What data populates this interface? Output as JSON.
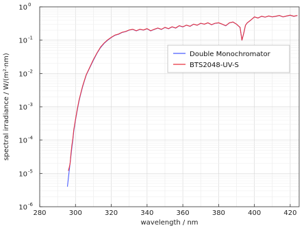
{
  "chart_data": {
    "type": "line",
    "title": "",
    "xlabel": "wavelength / nm",
    "ylabel": "spectral irradiance / W/(m²·nm)",
    "xlim": [
      280,
      425
    ],
    "ylim": [
      1e-06,
      1
    ],
    "yscale": "log",
    "grid": true,
    "legend_position": "center-right",
    "x_ticks": [
      280,
      300,
      320,
      340,
      360,
      380,
      400,
      420
    ],
    "y_ticks": [
      {
        "value": 1e-06,
        "base": "10",
        "exp": "-6"
      },
      {
        "value": 1e-05,
        "base": "10",
        "exp": "-5"
      },
      {
        "value": 0.0001,
        "base": "10",
        "exp": "-4"
      },
      {
        "value": 0.001,
        "base": "10",
        "exp": "-3"
      },
      {
        "value": 0.01,
        "base": "10",
        "exp": "-2"
      },
      {
        "value": 0.1,
        "base": "10",
        "exp": "-1"
      },
      {
        "value": 1,
        "base": "10",
        "exp": "0"
      }
    ],
    "series": [
      {
        "name": "Double Monochromator",
        "color": "#4a5cff",
        "x": [
          295.5,
          296,
          296.5,
          297,
          297.5,
          298,
          298.5,
          299,
          300,
          301,
          302,
          303,
          304,
          305,
          306,
          308,
          310,
          312,
          314,
          316,
          318,
          320,
          322,
          324,
          326,
          328,
          330,
          332,
          334,
          336,
          338,
          340,
          342,
          344,
          346,
          348,
          350,
          352,
          354,
          356,
          358,
          360,
          362,
          364,
          366,
          368,
          370,
          372,
          374,
          376,
          378,
          380,
          382,
          384,
          386,
          388,
          390,
          392,
          393,
          394,
          395,
          396,
          398,
          400,
          402,
          404,
          406,
          408,
          410,
          412,
          414,
          416,
          418,
          420,
          422,
          424
        ],
        "y": [
          4e-06,
          7e-06,
          1.2e-05,
          2e-05,
          3.5e-05,
          6e-05,
          0.0001,
          0.00018,
          0.0004,
          0.0008,
          0.0015,
          0.0025,
          0.004,
          0.006,
          0.009,
          0.015,
          0.025,
          0.04,
          0.06,
          0.08,
          0.1,
          0.12,
          0.14,
          0.15,
          0.17,
          0.18,
          0.2,
          0.21,
          0.19,
          0.21,
          0.2,
          0.22,
          0.19,
          0.21,
          0.23,
          0.21,
          0.24,
          0.22,
          0.25,
          0.23,
          0.27,
          0.25,
          0.28,
          0.26,
          0.3,
          0.28,
          0.32,
          0.3,
          0.33,
          0.29,
          0.32,
          0.33,
          0.3,
          0.27,
          0.33,
          0.35,
          0.3,
          0.24,
          0.1,
          0.16,
          0.28,
          0.33,
          0.4,
          0.5,
          0.46,
          0.52,
          0.49,
          0.53,
          0.5,
          0.52,
          0.55,
          0.5,
          0.53,
          0.56,
          0.52,
          0.55
        ]
      },
      {
        "name": "BTS2048-UV-S",
        "color": "#e8323c",
        "x": [
          296,
          296.5,
          297,
          297.5,
          298,
          298.5,
          299,
          300,
          301,
          302,
          303,
          304,
          305,
          306,
          308,
          310,
          312,
          314,
          316,
          318,
          320,
          322,
          324,
          326,
          328,
          330,
          332,
          334,
          336,
          338,
          340,
          342,
          344,
          346,
          348,
          350,
          352,
          354,
          356,
          358,
          360,
          362,
          364,
          366,
          368,
          370,
          372,
          374,
          376,
          378,
          380,
          382,
          384,
          386,
          388,
          390,
          392,
          393,
          394,
          395,
          396,
          398,
          400,
          402,
          404,
          406,
          408,
          410,
          412,
          414,
          416,
          418,
          420,
          422,
          424
        ],
        "y": [
          1.2e-05,
          1.5e-05,
          2e-05,
          4e-05,
          7e-05,
          0.00011,
          0.0002,
          0.00042,
          0.00085,
          0.0016,
          0.0026,
          0.0042,
          0.0062,
          0.0092,
          0.0155,
          0.026,
          0.041,
          0.062,
          0.082,
          0.102,
          0.122,
          0.142,
          0.152,
          0.172,
          0.182,
          0.202,
          0.212,
          0.192,
          0.212,
          0.202,
          0.222,
          0.192,
          0.212,
          0.232,
          0.212,
          0.242,
          0.222,
          0.252,
          0.232,
          0.272,
          0.252,
          0.282,
          0.262,
          0.302,
          0.282,
          0.322,
          0.302,
          0.332,
          0.292,
          0.322,
          0.332,
          0.302,
          0.272,
          0.332,
          0.352,
          0.302,
          0.242,
          0.1,
          0.16,
          0.282,
          0.332,
          0.402,
          0.5,
          0.462,
          0.522,
          0.492,
          0.532,
          0.502,
          0.522,
          0.552,
          0.502,
          0.532,
          0.562,
          0.522,
          0.552
        ]
      }
    ]
  }
}
